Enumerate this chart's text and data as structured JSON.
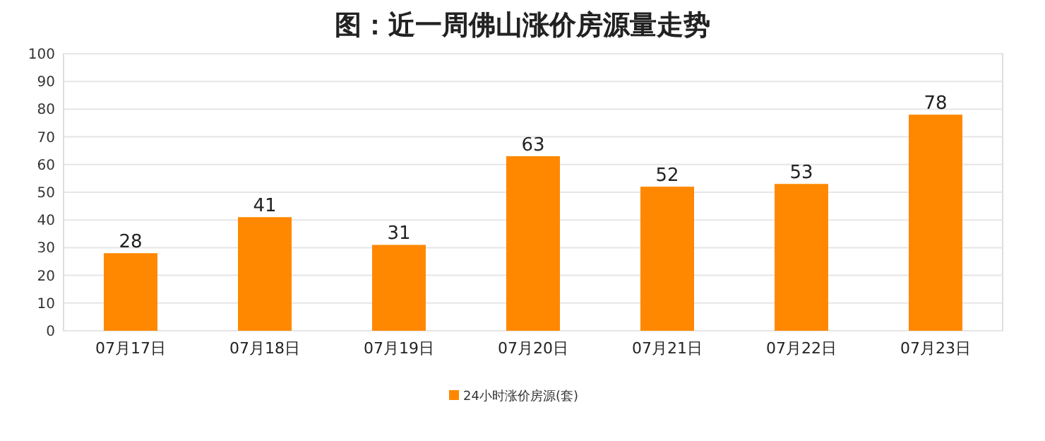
{
  "chart_data": {
    "type": "bar",
    "title": "图：近一周佛山涨价房源量走势",
    "categories": [
      "07月17日",
      "07月18日",
      "07月19日",
      "07月20日",
      "07月21日",
      "07月22日",
      "07月23日"
    ],
    "series": [
      {
        "name": "24小时涨价房源(套)",
        "color": "#ff8800",
        "values": [
          28,
          41,
          31,
          63,
          52,
          53,
          78
        ]
      }
    ],
    "ylim": [
      0,
      100
    ],
    "yticks": [
      0,
      10,
      20,
      30,
      40,
      50,
      60,
      70,
      80,
      90,
      100
    ],
    "grid": "y",
    "legend": "bottom",
    "data_labels": true
  }
}
